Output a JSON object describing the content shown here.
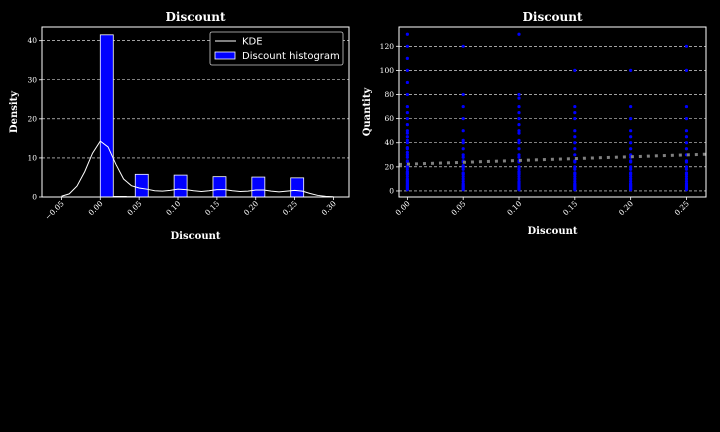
{
  "colors": {
    "background": "#000000",
    "axes": "#ffffff",
    "grid": "#ffffff",
    "bar_fill": "#0000ff",
    "bar_edge": "#ffffff",
    "kde": "#ffffff",
    "scatter": "#0000ff",
    "trend": "#808080"
  },
  "chart_data": [
    {
      "type": "bar",
      "title": "Discount",
      "xlabel": "Discount",
      "ylabel": "Density",
      "xlim": [
        -0.075,
        0.32
      ],
      "ylim": [
        0,
        43.5
      ],
      "xticks": [
        -0.05,
        0.0,
        0.05,
        0.1,
        0.15,
        0.2,
        0.25,
        0.3
      ],
      "xtick_labels": [
        "−0.05",
        "0.00",
        "0.05",
        "0.10",
        "0.15",
        "0.20",
        "0.25",
        "0.30"
      ],
      "yticks": [
        0,
        10,
        20,
        30,
        40
      ],
      "ytick_labels": [
        "0",
        "10",
        "20",
        "30",
        "40"
      ],
      "grid": "horizontal-dashed",
      "legend_position": "top-right",
      "legend": [
        "KDE",
        "Discount histogram"
      ],
      "series": [
        {
          "name": "Discount histogram",
          "kind": "bars",
          "bin_width": 0.0167,
          "bins": [
            {
              "left": 0.0,
              "height": 41.5
            },
            {
              "left": 0.0167,
              "height": 0.15
            },
            {
              "left": 0.0333,
              "height": 0.1
            },
            {
              "left": 0.045,
              "height": 5.8
            },
            {
              "left": 0.095,
              "height": 5.6
            },
            {
              "left": 0.145,
              "height": 5.2
            },
            {
              "left": 0.195,
              "height": 5.1
            },
            {
              "left": 0.245,
              "height": 4.9
            }
          ]
        },
        {
          "name": "KDE",
          "kind": "line",
          "x": [
            -0.05,
            -0.04,
            -0.03,
            -0.02,
            -0.01,
            0.0,
            0.01,
            0.02,
            0.03,
            0.04,
            0.05,
            0.06,
            0.07,
            0.08,
            0.09,
            0.1,
            0.11,
            0.12,
            0.13,
            0.14,
            0.15,
            0.16,
            0.17,
            0.18,
            0.19,
            0.2,
            0.21,
            0.22,
            0.23,
            0.24,
            0.25,
            0.26,
            0.27,
            0.28,
            0.29,
            0.3
          ],
          "y": [
            0.2,
            0.8,
            2.8,
            6.5,
            11.2,
            14.3,
            12.8,
            8.4,
            4.6,
            2.9,
            2.3,
            2.0,
            1.6,
            1.5,
            1.7,
            2.0,
            1.9,
            1.6,
            1.4,
            1.6,
            1.9,
            1.9,
            1.6,
            1.4,
            1.5,
            1.8,
            1.8,
            1.5,
            1.3,
            1.5,
            1.7,
            1.5,
            0.9,
            0.4,
            0.15,
            0.05
          ]
        }
      ]
    },
    {
      "type": "scatter",
      "title": "Discount",
      "xlabel": "Discount",
      "ylabel": "Quantity",
      "xlim": [
        -0.0075,
        0.2675
      ],
      "ylim": [
        -5,
        136
      ],
      "xticks": [
        0.0,
        0.05,
        0.1,
        0.15,
        0.2,
        0.25
      ],
      "xtick_labels": [
        "0.00",
        "0.05",
        "0.10",
        "0.15",
        "0.20",
        "0.25"
      ],
      "yticks": [
        0,
        20,
        40,
        60,
        80,
        100,
        120
      ],
      "ytick_labels": [
        "0",
        "20",
        "40",
        "60",
        "80",
        "100",
        "120"
      ],
      "grid": "horizontal-dashed",
      "points": {
        "x_values": [
          0.0,
          0.05,
          0.1,
          0.15,
          0.2,
          0.25
        ],
        "y_values": [
          [
            1,
            2,
            3,
            4,
            5,
            6,
            7,
            8,
            9,
            10,
            12,
            14,
            15,
            16,
            18,
            20,
            21,
            24,
            25,
            28,
            30,
            32,
            35,
            36,
            40,
            42,
            45,
            48,
            50,
            55,
            60,
            65,
            70,
            80,
            90,
            100,
            110,
            120,
            130
          ],
          [
            1,
            2,
            3,
            4,
            5,
            6,
            8,
            10,
            12,
            14,
            15,
            18,
            20,
            21,
            24,
            25,
            28,
            30,
            35,
            40,
            42,
            50,
            60,
            70,
            80,
            120
          ],
          [
            1,
            2,
            3,
            4,
            5,
            6,
            7,
            8,
            10,
            12,
            14,
            15,
            16,
            18,
            20,
            24,
            25,
            28,
            30,
            35,
            40,
            42,
            48,
            50,
            55,
            60,
            65,
            70,
            77,
            80,
            130
          ],
          [
            1,
            2,
            3,
            4,
            5,
            6,
            8,
            10,
            12,
            14,
            15,
            18,
            20,
            24,
            25,
            30,
            35,
            40,
            45,
            50,
            60,
            65,
            70,
            100
          ],
          [
            1,
            2,
            3,
            4,
            5,
            6,
            8,
            10,
            12,
            14,
            15,
            18,
            20,
            24,
            25,
            28,
            30,
            35,
            40,
            45,
            50,
            60,
            70,
            100
          ],
          [
            1,
            2,
            3,
            4,
            5,
            6,
            8,
            10,
            12,
            14,
            15,
            18,
            20,
            24,
            25,
            30,
            35,
            40,
            45,
            50,
            60,
            70,
            100,
            120
          ]
        ]
      },
      "trend": {
        "x": [
          -0.0075,
          0.2675
        ],
        "y": [
          22.0,
          30.5
        ]
      }
    }
  ]
}
